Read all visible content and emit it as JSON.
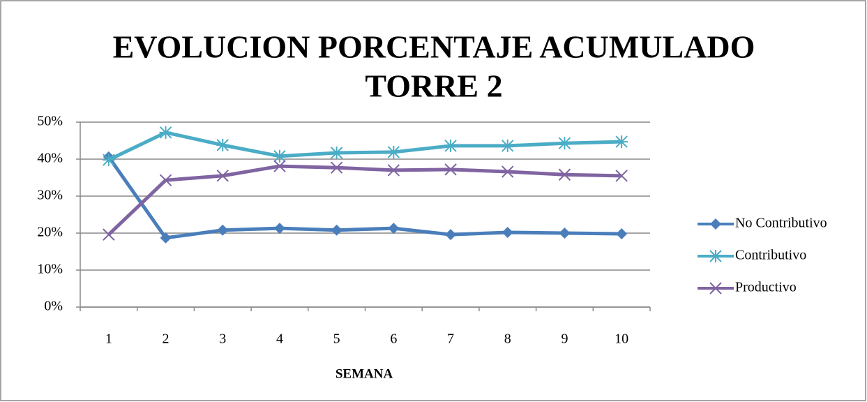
{
  "chart_data": {
    "type": "line",
    "title": [
      "EVOLUCION PORCENTAJE ACUMULADO",
      "TORRE 2"
    ],
    "xlabel": "SEMANA",
    "categories": [
      "1",
      "2",
      "3",
      "4",
      "5",
      "6",
      "7",
      "8",
      "9",
      "10"
    ],
    "series": [
      {
        "name": "No Contributivo",
        "color": "#4a7ebb",
        "marker": "diamond",
        "values": [
          40.6,
          18.7,
          20.8,
          21.3,
          20.8,
          21.3,
          19.6,
          20.2,
          20.0,
          19.8
        ]
      },
      {
        "name": "Contributivo",
        "color": "#4bacc6",
        "marker": "asterisk",
        "values": [
          39.8,
          47.2,
          43.8,
          40.8,
          41.7,
          41.9,
          43.6,
          43.6,
          44.3,
          44.7
        ]
      },
      {
        "name": "Productivo",
        "color": "#8064a2",
        "marker": "x",
        "values": [
          19.6,
          34.3,
          35.5,
          38.1,
          37.7,
          37.0,
          37.2,
          36.6,
          35.8,
          35.5
        ]
      }
    ],
    "ylim": [
      0,
      50
    ],
    "yticks": [
      {
        "value": 0,
        "label": "0%"
      },
      {
        "value": 10,
        "label": "10%"
      },
      {
        "value": 20,
        "label": "20%"
      },
      {
        "value": 30,
        "label": "30%"
      },
      {
        "value": 40,
        "label": "40%"
      },
      {
        "value": 50,
        "label": "50%"
      }
    ],
    "grid": true,
    "legend": "right"
  }
}
